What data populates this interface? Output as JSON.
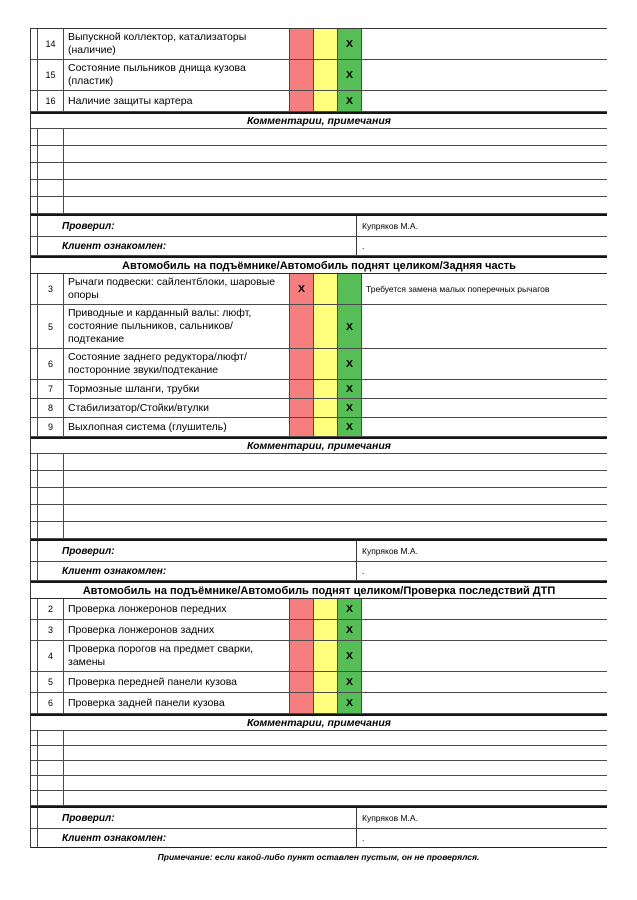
{
  "colors": {
    "red": "#F57E7E",
    "yellow": "#FFFF7D",
    "green": "#57BD57"
  },
  "labels": {
    "comments_header": "Комментарии, примечания",
    "checked_by": "Проверил:",
    "client_informed": "Клиент ознакомлен:",
    "mark_symbol": "X",
    "footer_note": "Примечание: если какой-либо пункт оставлен пустым, он не проверялся."
  },
  "sections": [
    {
      "title": null,
      "items": [
        {
          "num": "14",
          "text": "Выпускной коллектор, катализаторы (наличие)",
          "mark": "green",
          "comment": ""
        },
        {
          "num": "15",
          "text": "Состояние пыльников днища кузова (пластик)",
          "mark": "green",
          "comment": ""
        },
        {
          "num": "16",
          "text": "Наличие защиты картера",
          "mark": "green",
          "comment": ""
        }
      ],
      "empty_rows": 5,
      "checked_by": "Купряков М.А.",
      "client_ack": "."
    },
    {
      "title": "Автомобиль на подъёмнике/Автомобиль поднят целиком/Задняя часть",
      "items": [
        {
          "num": "3",
          "text": "Рычаги подвески: сайлентблоки, шаровые опоры",
          "mark": "red",
          "comment": "Требуется замена малых поперечных рычагов"
        },
        {
          "num": "5",
          "text": "Приводные и карданный валы: люфт, состояние пыльников, сальников/подтекание",
          "mark": "green",
          "comment": ""
        },
        {
          "num": "6",
          "text": "Состояние заднего редуктора/люфт/посторонние звуки/подтекание",
          "mark": "green",
          "comment": ""
        },
        {
          "num": "7",
          "text": "Тормозные шланги, трубки",
          "mark": "green",
          "comment": ""
        },
        {
          "num": "8",
          "text": "Стабилизатор/Стойки/втулки",
          "mark": "green",
          "comment": ""
        },
        {
          "num": "9",
          "text": "Выхлопная система (глушитель)",
          "mark": "green",
          "comment": ""
        }
      ],
      "empty_rows": 5,
      "checked_by": "Купряков М.А.",
      "client_ack": "."
    },
    {
      "title": "Автомобиль на подъёмнике/Автомобиль поднят целиком/Проверка последствий ДТП",
      "items": [
        {
          "num": "2",
          "text": "Проверка лонжеронов передних",
          "mark": "green",
          "comment": ""
        },
        {
          "num": "3",
          "text": "Проверка лонжеронов задних",
          "mark": "green",
          "comment": ""
        },
        {
          "num": "4",
          "text": "Проверка порогов на предмет сварки, замены",
          "mark": "green",
          "comment": ""
        },
        {
          "num": "5",
          "text": "Проверка передней панели кузова",
          "mark": "green",
          "comment": ""
        },
        {
          "num": "6",
          "text": "Проверка задней панели кузова",
          "mark": "green",
          "comment": ""
        }
      ],
      "empty_rows": 5,
      "checked_by": "Купряков М.А.",
      "client_ack": "."
    }
  ]
}
